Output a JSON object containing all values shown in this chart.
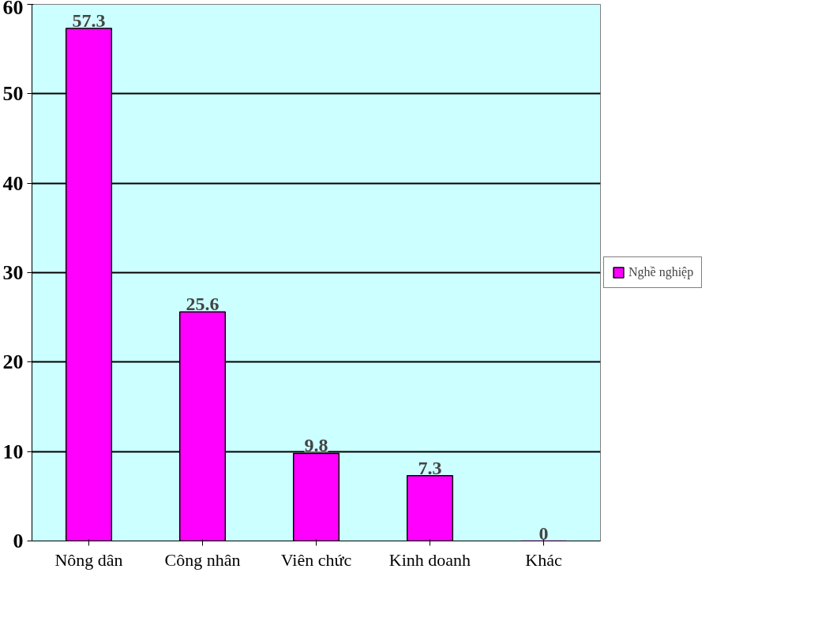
{
  "chart_data": {
    "type": "bar",
    "categories": [
      "Nông dân",
      "Công nhân",
      "Viên chức",
      "Kinh doanh",
      "Khác"
    ],
    "series": [
      {
        "name": "Nghề nghiệp",
        "color": "#ff00ff",
        "values": [
          57.3,
          25.6,
          9.8,
          7.3,
          0
        ]
      }
    ],
    "ylim": [
      0,
      60
    ],
    "yticks": [
      0,
      10,
      20,
      30,
      40,
      50,
      60
    ],
    "grid": "y",
    "legend": "right",
    "data_labels": true
  }
}
